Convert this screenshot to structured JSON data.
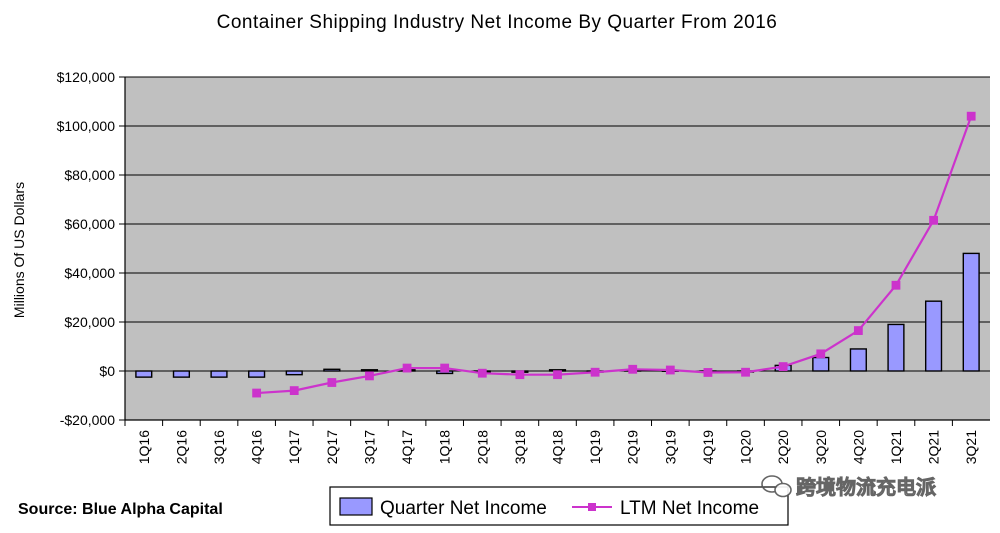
{
  "chart_data": {
    "type": "bar",
    "title": "Container Shipping Industry Net Income By Quarter From 2016",
    "ylabel": "Millions Of US Dollars",
    "xlabel": "",
    "ylim": [
      -20000,
      120000
    ],
    "yticks": [
      -20000,
      0,
      20000,
      40000,
      60000,
      80000,
      100000,
      120000
    ],
    "ytick_labels": [
      "-$20,000",
      "$0",
      "$20,000",
      "$40,000",
      "$60,000",
      "$80,000",
      "$100,000",
      "$120,000"
    ],
    "grid": true,
    "categories": [
      "1Q16",
      "2Q16",
      "3Q16",
      "4Q16",
      "1Q17",
      "2Q17",
      "3Q17",
      "4Q17",
      "1Q18",
      "2Q18",
      "3Q18",
      "4Q18",
      "1Q19",
      "2Q19",
      "3Q19",
      "4Q19",
      "1Q20",
      "2Q20",
      "3Q20",
      "4Q20",
      "1Q21",
      "2Q21",
      "3Q21"
    ],
    "series": [
      {
        "name": "Quarter Net Income",
        "type": "bar",
        "color": "#9999ff",
        "values": [
          -2500,
          -2500,
          -2500,
          -2500,
          -1500,
          700,
          500,
          500,
          -1000,
          -500,
          -500,
          500,
          -200,
          400,
          300,
          -300,
          -300,
          2300,
          5500,
          9000,
          19000,
          28500,
          48000
        ]
      },
      {
        "name": "LTM Net Income",
        "type": "line",
        "color": "#cc33cc",
        "values": [
          null,
          null,
          null,
          -9000,
          -8000,
          -4700,
          -2000,
          1200,
          1200,
          -900,
          -1500,
          -1500,
          -500,
          700,
          400,
          -600,
          -500,
          1800,
          7000,
          16500,
          35000,
          61500,
          104000
        ]
      }
    ],
    "legend": "bottom-center"
  },
  "source": "Source: Blue Alpha Capital",
  "watermark": "跨境物流充电派",
  "colors": {
    "plot_background": "#c0c0c0",
    "bar_stroke": "#000000",
    "grid": "#000000"
  }
}
